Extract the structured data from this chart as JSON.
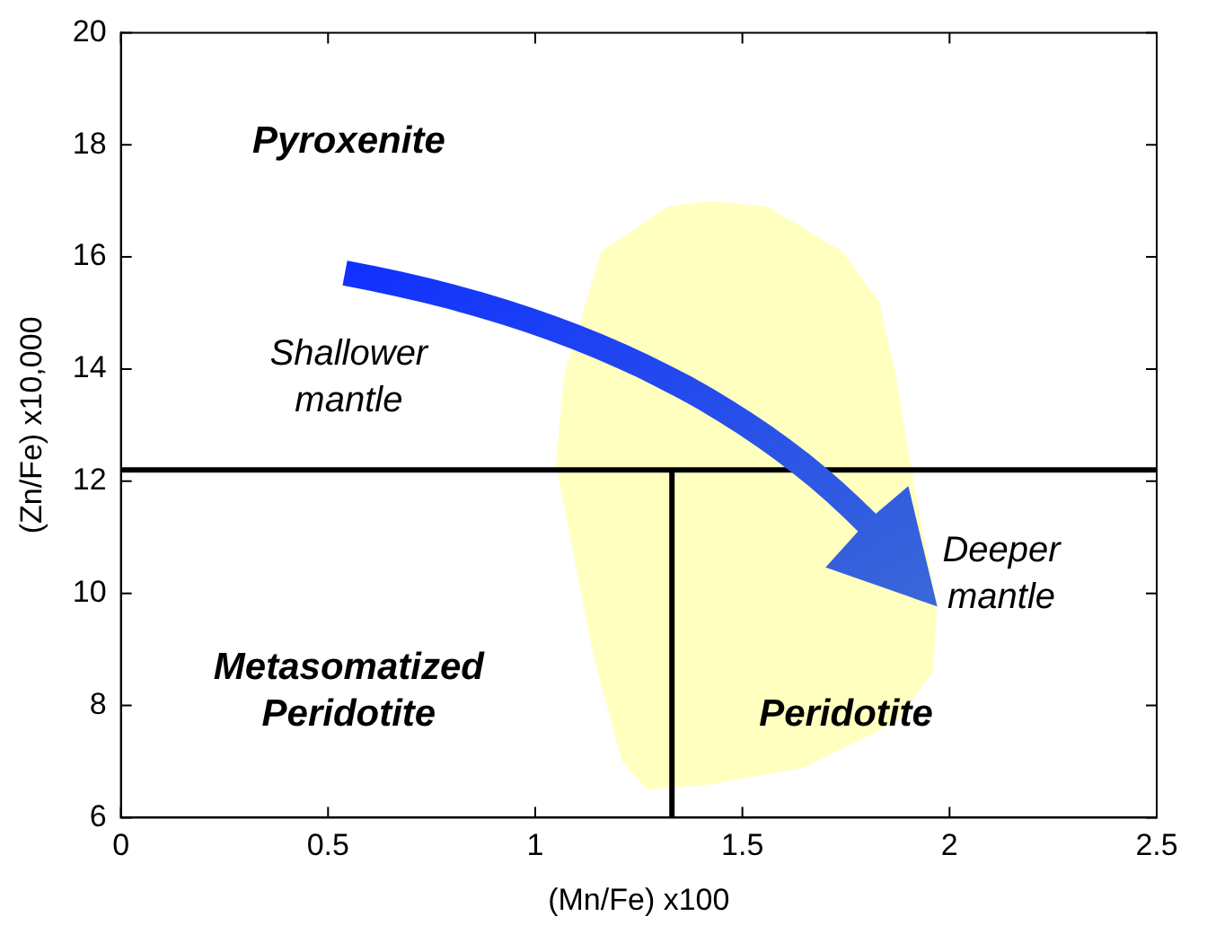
{
  "chart_data": {
    "type": "line",
    "xlabel": "(Mn/Fe) x100",
    "ylabel": "(Zn/Fe) x10,000",
    "xlim": [
      0,
      2.5
    ],
    "xticks": [
      0,
      0.5,
      1,
      1.5,
      2,
      2.5
    ],
    "ylim": [
      6,
      20
    ],
    "yticks": [
      6,
      8,
      10,
      12,
      14,
      16,
      18,
      20
    ],
    "grid": false,
    "legend": false,
    "marker": "none",
    "series": [
      {
        "type": "area",
        "color": "#ffffc0",
        "x": [
          1.32,
          1.16,
          1.07,
          1.05,
          1.09,
          1.14,
          1.21,
          1.27,
          1.43,
          1.65,
          1.87,
          1.96,
          1.97,
          1.92,
          1.87,
          1.83,
          1.74,
          1.56,
          1.42,
          1.32
        ],
        "values": [
          16.9,
          16.1,
          13.9,
          12.3,
          10.8,
          8.9,
          7.0,
          6.5,
          6.6,
          6.9,
          7.7,
          8.6,
          9.8,
          11.7,
          13.9,
          15.2,
          16.1,
          16.9,
          17.0,
          16.9
        ]
      },
      {
        "type": "line",
        "color": "#000000",
        "x": [
          1.33,
          1.33
        ],
        "values": [
          6,
          12.2
        ]
      }
    ],
    "ref_lines": [
      {
        "axis": "y",
        "value": 12.2,
        "color": "#000000"
      }
    ],
    "annotations": [
      "Pyroxenite",
      "Shallower\nmantle",
      "Deeper\nmantle",
      "Metasomatized\nPeridotite",
      "Peridotite"
    ]
  }
}
